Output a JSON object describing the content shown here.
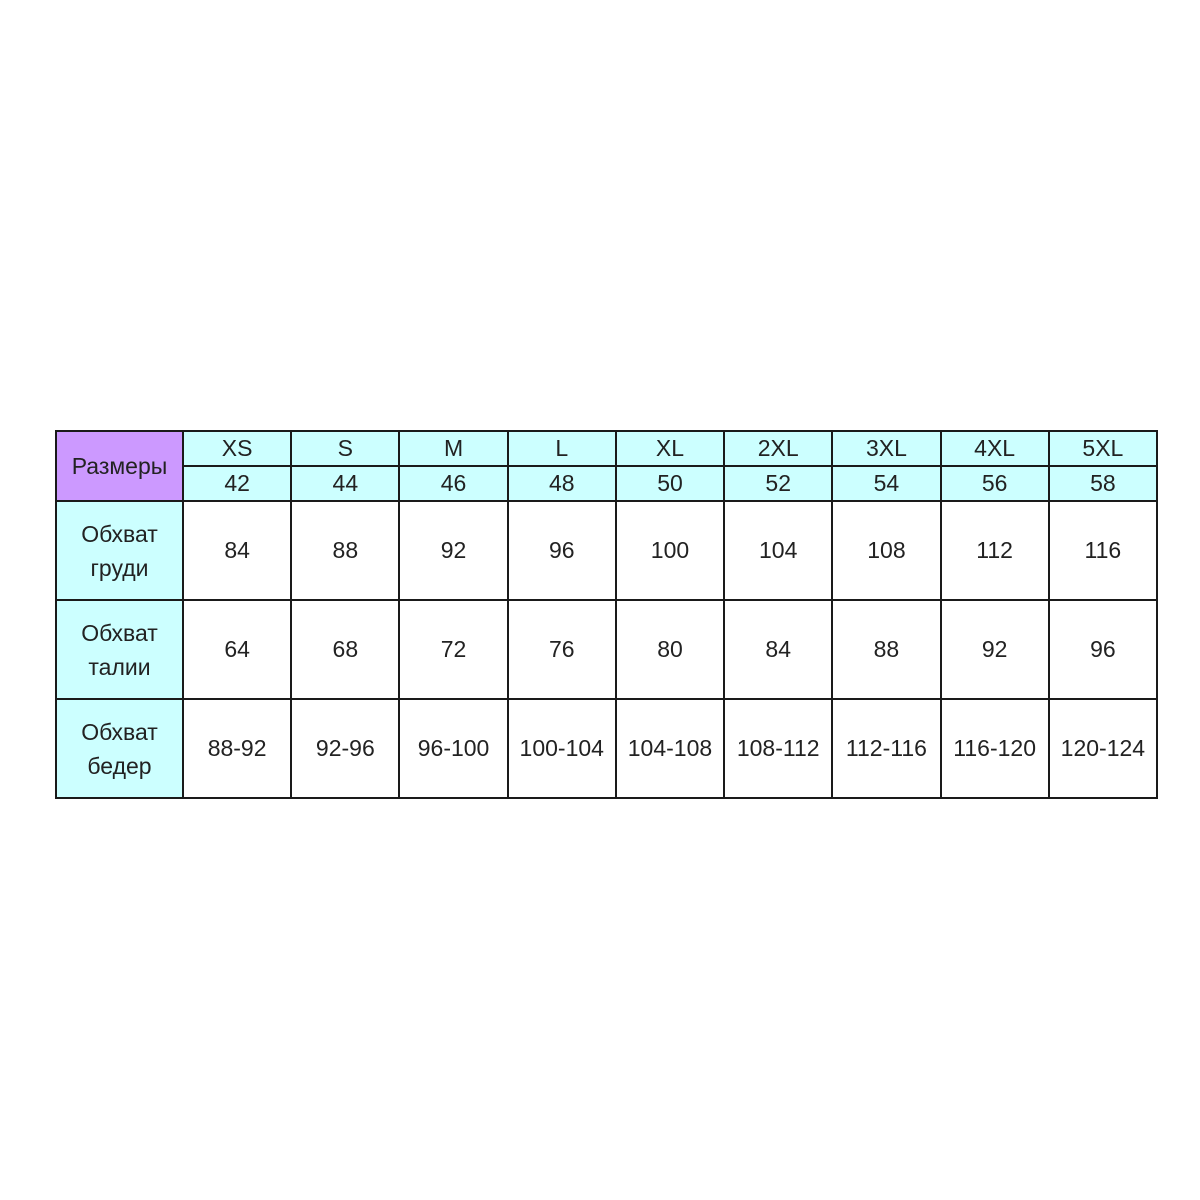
{
  "header": {
    "corner_label": "Размеры",
    "sizes": [
      "XS",
      "S",
      "M",
      "L",
      "XL",
      "2XL",
      "3XL",
      "4XL",
      "5XL"
    ],
    "ru_sizes": [
      "42",
      "44",
      "46",
      "48",
      "50",
      "52",
      "54",
      "56",
      "58"
    ]
  },
  "rows": [
    {
      "label_line1": "Обхват",
      "label_line2": "груди",
      "values": [
        "84",
        "88",
        "92",
        "96",
        "100",
        "104",
        "108",
        "112",
        "116"
      ]
    },
    {
      "label_line1": "Обхват",
      "label_line2": "талии",
      "values": [
        "64",
        "68",
        "72",
        "76",
        "80",
        "84",
        "88",
        "92",
        "96"
      ]
    },
    {
      "label_line1": "Обхват",
      "label_line2": "бедер",
      "values": [
        "88-92",
        "92-96",
        "96-100",
        "100-104",
        "104-108",
        "108-112",
        "112-116",
        "116-120",
        "120-124"
      ]
    }
  ],
  "colors": {
    "corner": "#cc99ff",
    "header": "#ccffff",
    "border": "#1a1a1a"
  }
}
